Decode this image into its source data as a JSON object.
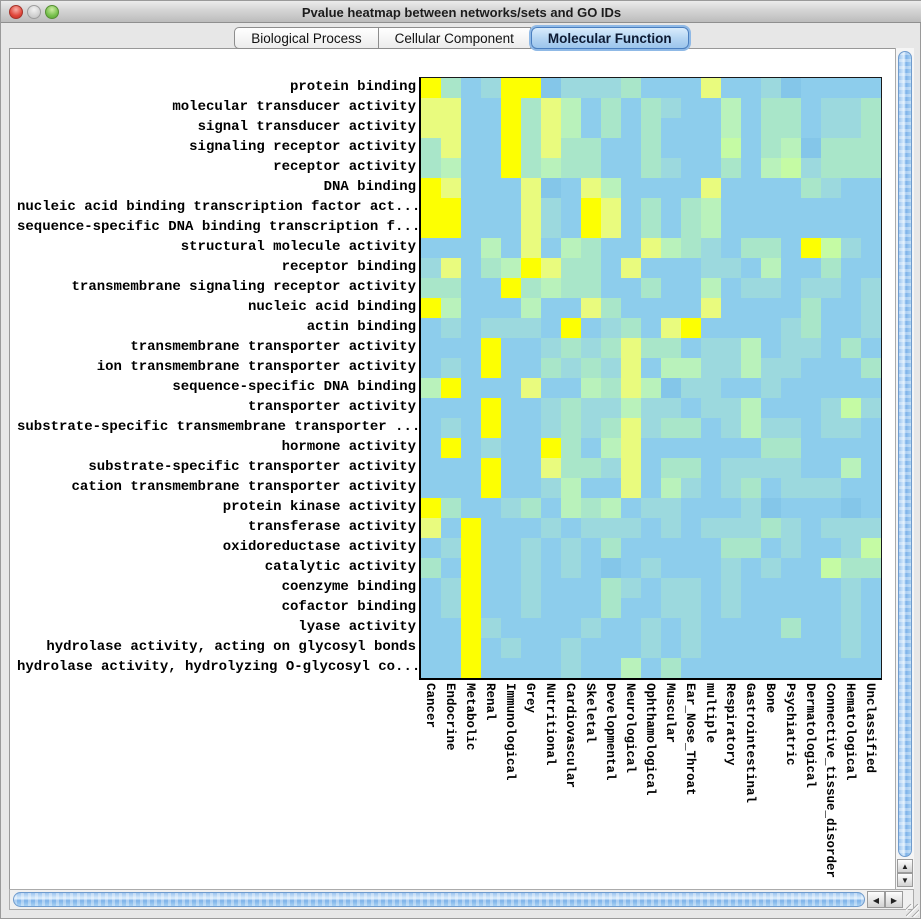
{
  "window": {
    "title": "Pvalue heatmap between networks/sets and GO IDs",
    "traffic_lights": [
      "close",
      "minimize",
      "zoom"
    ]
  },
  "tabs": [
    {
      "label": "Biological Process",
      "selected": false
    },
    {
      "label": "Cellular Component",
      "selected": false
    },
    {
      "label": "Molecular Function",
      "selected": true
    }
  ],
  "heatmap": {
    "row_labels": [
      "protein binding",
      "molecular transducer activity",
      "signal transducer activity",
      "signaling receptor activity",
      "receptor activity",
      "DNA binding",
      "nucleic acid binding transcription factor act...",
      "sequence-specific DNA binding transcription f...",
      "structural molecule activity",
      "receptor binding",
      "transmembrane signaling receptor activity",
      "nucleic acid binding",
      "actin binding",
      "transmembrane transporter activity",
      "ion transmembrane transporter activity",
      "sequence-specific DNA binding",
      "transporter activity",
      "substrate-specific transmembrane transporter ...",
      "hormone activity",
      "substrate-specific transporter activity",
      "cation transmembrane transporter activity",
      "protein kinase activity",
      "transferase activity",
      "oxidoreductase activity",
      "catalytic activity",
      "coenzyme binding",
      "cofactor binding",
      "lyase activity",
      "hydrolase activity, acting on glycosyl bonds",
      "hydrolase activity, hydrolyzing O-glycosyl co..."
    ],
    "col_labels": [
      "Cancer",
      "Endocrine",
      "Metabolic",
      "Renal",
      "Immunological",
      "Grey",
      "Nutritional",
      "Cardiovascular",
      "Skeletal",
      "Developmental",
      "Neurological",
      "Ophthamological",
      "Muscular",
      "Ear_Nose_Throat",
      "multiple",
      "Respiratory",
      "Gastrointestinal",
      "Bone",
      "Psychiatric",
      "Dermatological",
      "Connective_tissue_disorder",
      "Hematological",
      "Unclassified"
    ],
    "palette": {
      "b": "#8dcdec",
      "B": "#84c6e9",
      "c": "#9cd9de",
      "t": "#a9e6c9",
      "g": "#b9f2bb",
      "G": "#c5fba4",
      "y": "#e9fb7e",
      "Y": "#fdff02"
    },
    "legend": "b=base blue, B=darker blue, c=cyan, t=teal green, g=pale green, G=bright green, y=pale yellow, Y=bright yellow (low p-value)",
    "cells": [
      "YtbcYYBccctbbbybbcBbbbb",
      "yybbYtygbtbtcbbgbttbcct",
      "yybbYtygbtbtbbbgbttbcct",
      "tybbYtyttbbtbbbGbtgBttt",
      "tgbbYtgttbbtcbbtbgGcttt",
      "YybbbyBbygbbbbybbbbtcbb",
      "YYbbbycbYybtbtgbbbbbbbb",
      "YYbbbycbYybtbtgbbbbbbbb",
      "bbbgbybgtbbygtcbttbYGcb",
      "cybtgYyttbybbbccbgbbtbb",
      "ttbbYtgttbbtbbgbccbccbc",
      "Ygbbbgbbytbbbbybbbbtbbc",
      "bcbcccbYbctbyYbbbbctbbc",
      "bbbYbbctctyttbccgbccbtb",
      "bcbYbbtctcybggccgccbbbt",
      "gYbbbybbgtygBccbbcbbbbb",
      "bbbYbbctccgccbccgbbbcGc",
      "bcbYbbctctycttbcgccbccb",
      "bYbcbbYtbgybbbbbbttbbbb",
      "bbbYbbyttcybttbccccbbgb",
      "bbbYbbcgbbybgcbctbcccbb",
      "YtbbctbgtgbccbbbcBbbbBb",
      "ybYbbbcbcccbcbccctcbccc",
      "bcYbbcbcbtbbbbbttbcbbcG",
      "tbYbbcbcbBbcbbbcbcbbGtt",
      "bcYbbcbbbtcbccbcbbbbbcb",
      "bcYbbcbbbtbbccbcbbbbbcb",
      "bbYcbbbbcbbcbcbbbbtbbcb",
      "bbYbcbbcbbbcbcbbbbbbbcb",
      "bbYbbbbcbbgbtbbbbbbbbbb"
    ]
  },
  "scrollbars": {
    "up_icon": "▲",
    "down_icon": "▼",
    "left_icon": "◀",
    "right_icon": "▶"
  }
}
